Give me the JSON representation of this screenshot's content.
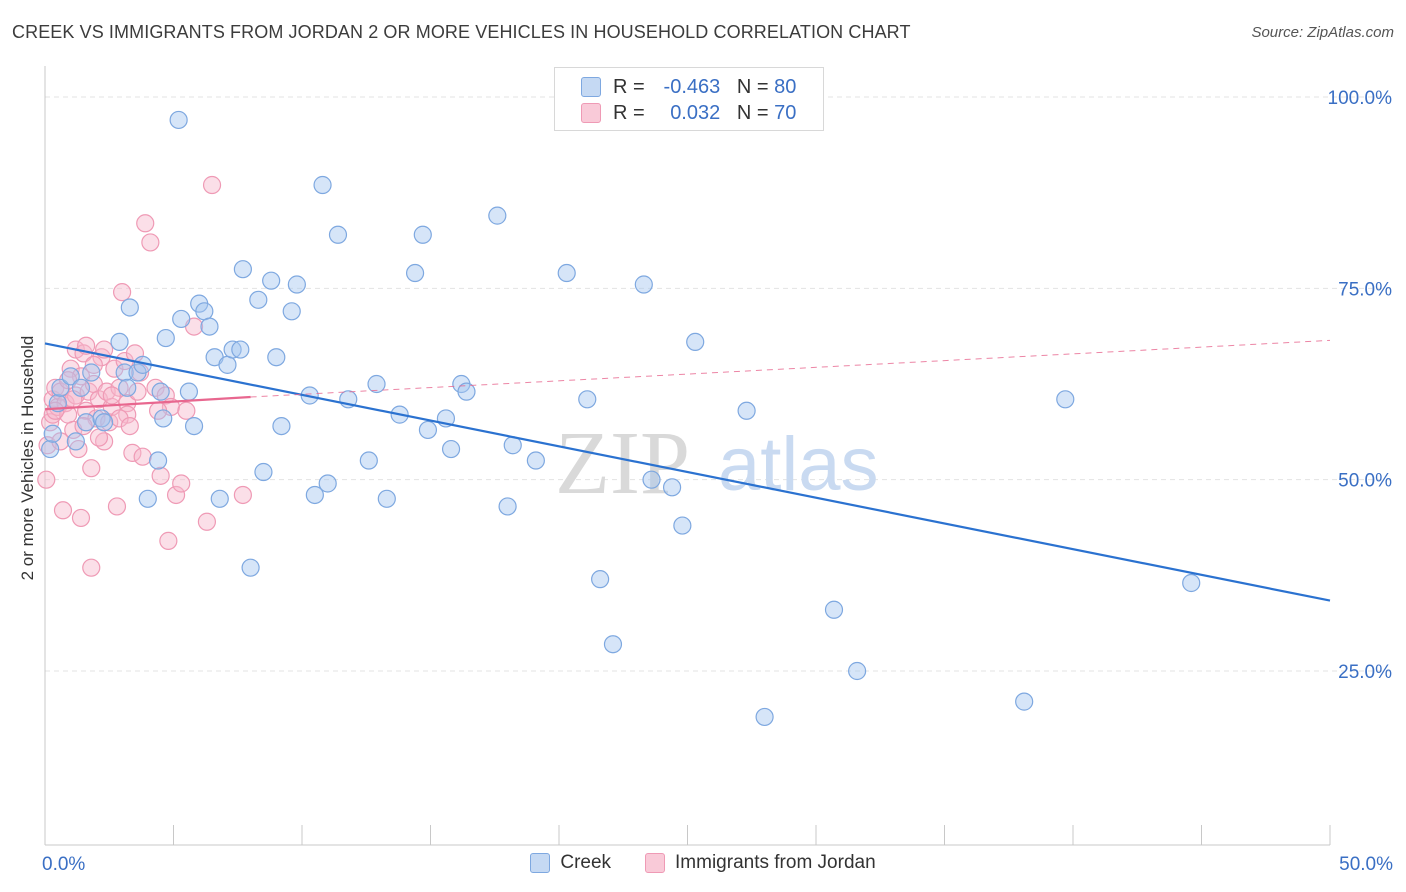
{
  "title": "CREEK VS IMMIGRANTS FROM JORDAN 2 OR MORE VEHICLES IN HOUSEHOLD CORRELATION CHART",
  "source": "Source: ZipAtlas.com",
  "watermark": {
    "zip": "ZIP",
    "atlas": "atlas"
  },
  "legend_top": [
    {
      "r_label": "R =",
      "r_value": "-0.463",
      "n_label": "N =",
      "n_value": "80"
    },
    {
      "r_label": "R =",
      "r_value": "0.032",
      "n_label": "N =",
      "n_value": "70"
    }
  ],
  "bottom_legend": [
    "Creek",
    "Immigrants from Jordan"
  ],
  "chart_data": {
    "type": "scatter",
    "title": "CREEK VS IMMIGRANTS FROM JORDAN 2 OR MORE VEHICLES IN HOUSEHOLD CORRELATION CHART",
    "xlabel": "",
    "ylabel": "2 or more Vehicles in Household",
    "xlim": [
      0,
      50
    ],
    "ylim": [
      0,
      104
    ],
    "x_tick_labels": [
      {
        "value": 0,
        "label": "0.0%"
      },
      {
        "value": 50,
        "label": "50.0%"
      }
    ],
    "y_tick_labels": [
      {
        "value": 25,
        "label": "25.0%"
      },
      {
        "value": 50,
        "label": "50.0%"
      },
      {
        "value": 75,
        "label": "75.0%"
      },
      {
        "value": 100,
        "label": "100.0%"
      }
    ],
    "grid": true,
    "legend_position": "top-center",
    "colors": {
      "creek": "#8ab4e8",
      "creek_line": "#2b72d0",
      "jordan": "#f4a7bf",
      "jordan_line": "#e8678f",
      "tick_label": "#3a6fc4"
    },
    "series": [
      {
        "name": "Creek",
        "r": -0.463,
        "n": 80,
        "trend": {
          "x": [
            0,
            50
          ],
          "y": [
            67.8,
            34.2
          ],
          "style": "solid"
        },
        "points": [
          [
            0.2,
            54
          ],
          [
            0.5,
            60
          ],
          [
            0.6,
            62
          ],
          [
            1.0,
            63.5
          ],
          [
            1.2,
            55
          ],
          [
            1.4,
            62
          ],
          [
            1.6,
            57.5
          ],
          [
            1.8,
            64
          ],
          [
            2.2,
            58
          ],
          [
            2.3,
            57.5
          ],
          [
            2.9,
            68
          ],
          [
            3.1,
            64
          ],
          [
            3.2,
            62
          ],
          [
            3.3,
            72.5
          ],
          [
            3.6,
            64
          ],
          [
            3.8,
            65
          ],
          [
            4.0,
            47.5
          ],
          [
            4.4,
            52.5
          ],
          [
            4.5,
            61.5
          ],
          [
            4.6,
            58
          ],
          [
            4.7,
            68.5
          ],
          [
            5.2,
            97
          ],
          [
            5.3,
            71
          ],
          [
            5.6,
            61.5
          ],
          [
            5.8,
            57
          ],
          [
            6.0,
            73
          ],
          [
            6.2,
            72
          ],
          [
            6.4,
            70
          ],
          [
            6.6,
            66
          ],
          [
            6.8,
            47.5
          ],
          [
            7.1,
            65
          ],
          [
            7.3,
            67
          ],
          [
            7.6,
            67
          ],
          [
            7.7,
            77.5
          ],
          [
            8.0,
            38.5
          ],
          [
            8.3,
            73.5
          ],
          [
            8.5,
            51
          ],
          [
            8.8,
            76
          ],
          [
            9.0,
            66
          ],
          [
            9.2,
            57
          ],
          [
            9.6,
            72
          ],
          [
            9.8,
            75.5
          ],
          [
            10.3,
            61
          ],
          [
            10.5,
            48
          ],
          [
            10.8,
            88.5
          ],
          [
            11.0,
            49.5
          ],
          [
            11.4,
            82
          ],
          [
            11.8,
            60.5
          ],
          [
            12.6,
            52.5
          ],
          [
            12.9,
            62.5
          ],
          [
            13.3,
            47.5
          ],
          [
            13.8,
            58.5
          ],
          [
            14.4,
            77
          ],
          [
            14.7,
            82
          ],
          [
            14.9,
            56.5
          ],
          [
            15.6,
            58
          ],
          [
            15.8,
            54
          ],
          [
            16.2,
            62.5
          ],
          [
            16.4,
            61.5
          ],
          [
            17.6,
            84.5
          ],
          [
            18.0,
            46.5
          ],
          [
            18.2,
            54.5
          ],
          [
            19.1,
            52.5
          ],
          [
            20.3,
            77
          ],
          [
            21.1,
            60.5
          ],
          [
            21.6,
            37
          ],
          [
            22.1,
            28.5
          ],
          [
            23.3,
            75.5
          ],
          [
            23.6,
            50
          ],
          [
            24.4,
            49
          ],
          [
            24.8,
            44
          ],
          [
            25.3,
            68
          ],
          [
            27.3,
            59
          ],
          [
            28.0,
            19
          ],
          [
            30.7,
            33
          ],
          [
            31.6,
            25
          ],
          [
            38.1,
            21
          ],
          [
            39.7,
            60.5
          ],
          [
            44.6,
            36.5
          ],
          [
            0.3,
            56
          ]
        ]
      },
      {
        "name": "Immigrants from Jordan",
        "r": 0.032,
        "n": 70,
        "trend": {
          "x": [
            0,
            8
          ],
          "y": [
            59.2,
            60.8
          ],
          "style": "solid",
          "extended": {
            "x": [
              8,
              50
            ],
            "y": [
              60.8,
              68.2
            ],
            "style": "dashed"
          }
        },
        "points": [
          [
            0.05,
            50
          ],
          [
            0.1,
            54.5
          ],
          [
            0.2,
            57.5
          ],
          [
            0.3,
            58.5
          ],
          [
            0.3,
            60.5
          ],
          [
            0.4,
            62
          ],
          [
            0.5,
            59.5
          ],
          [
            0.6,
            55
          ],
          [
            0.6,
            61.5
          ],
          [
            0.7,
            46
          ],
          [
            0.8,
            60
          ],
          [
            0.9,
            58.5
          ],
          [
            1.0,
            64.5
          ],
          [
            1.1,
            56.5
          ],
          [
            1.2,
            61
          ],
          [
            1.2,
            67
          ],
          [
            1.3,
            54
          ],
          [
            1.4,
            63.5
          ],
          [
            1.4,
            45
          ],
          [
            1.5,
            66.5
          ],
          [
            1.6,
            59
          ],
          [
            1.6,
            67.5
          ],
          [
            1.7,
            61.5
          ],
          [
            1.8,
            51.5
          ],
          [
            1.8,
            38.5
          ],
          [
            1.9,
            62.5
          ],
          [
            2.0,
            58
          ],
          [
            2.1,
            60.5
          ],
          [
            2.2,
            66
          ],
          [
            2.3,
            55
          ],
          [
            2.3,
            67
          ],
          [
            2.4,
            61.5
          ],
          [
            2.5,
            57.5
          ],
          [
            2.6,
            59.5
          ],
          [
            2.7,
            64.5
          ],
          [
            2.8,
            46.5
          ],
          [
            2.9,
            62
          ],
          [
            3.0,
            74.5
          ],
          [
            3.1,
            65.5
          ],
          [
            3.2,
            60
          ],
          [
            3.2,
            58.5
          ],
          [
            3.4,
            53.5
          ],
          [
            3.5,
            66.5
          ],
          [
            3.6,
            61.5
          ],
          [
            3.8,
            53
          ],
          [
            3.9,
            83.5
          ],
          [
            4.1,
            81
          ],
          [
            4.3,
            62
          ],
          [
            4.5,
            50.5
          ],
          [
            4.7,
            61
          ],
          [
            4.8,
            42
          ],
          [
            4.9,
            59.5
          ],
          [
            5.1,
            48
          ],
          [
            5.3,
            49.5
          ],
          [
            5.5,
            59
          ],
          [
            5.8,
            70
          ],
          [
            6.3,
            44.5
          ],
          [
            6.5,
            88.5
          ],
          [
            7.7,
            48
          ],
          [
            1.1,
            60.5
          ],
          [
            0.9,
            63
          ],
          [
            2.1,
            55.5
          ],
          [
            2.9,
            58
          ],
          [
            1.5,
            57
          ],
          [
            3.7,
            64
          ],
          [
            4.4,
            59
          ],
          [
            0.4,
            59
          ],
          [
            2.6,
            61
          ],
          [
            1.9,
            65
          ],
          [
            3.3,
            57
          ]
        ]
      }
    ]
  }
}
